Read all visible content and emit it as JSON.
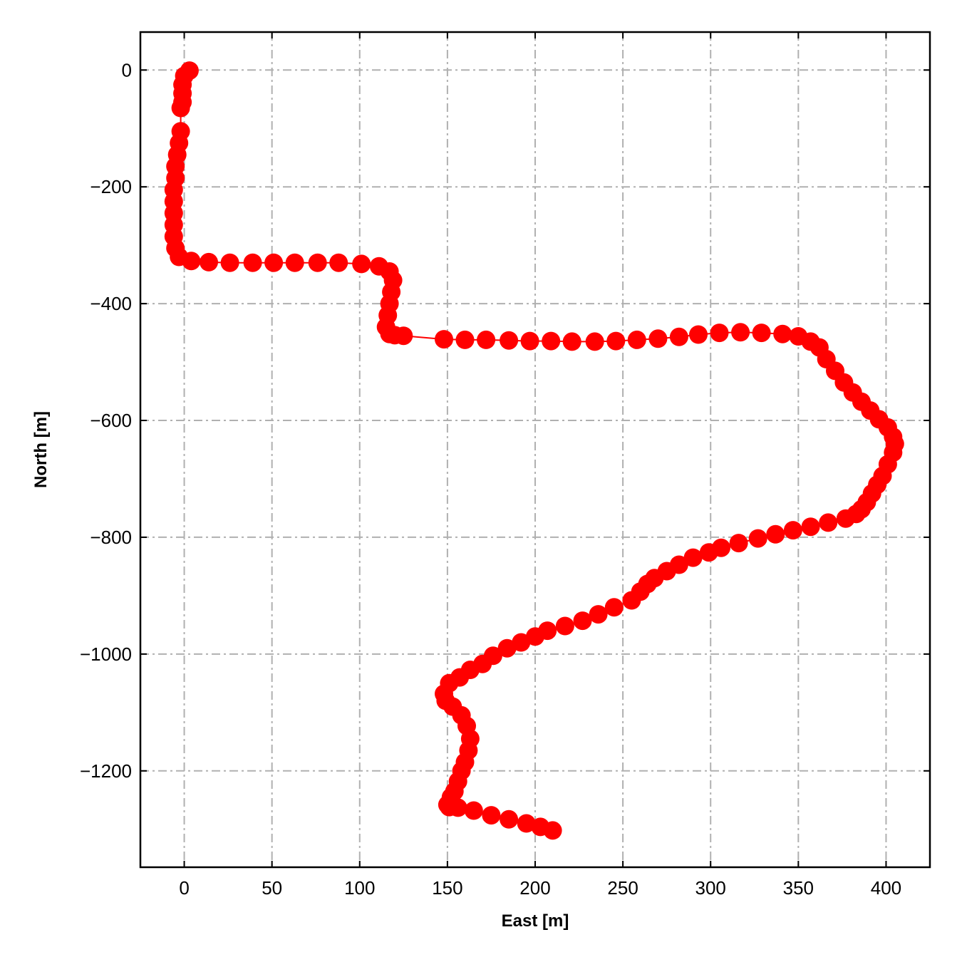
{
  "chart_data": {
    "type": "line",
    "title": "",
    "xlabel": "East [m]",
    "ylabel": "North [m]",
    "xlim": [
      -25,
      425
    ],
    "ylim": [
      -1365,
      65
    ],
    "xticks": [
      0,
      50,
      100,
      150,
      200,
      250,
      300,
      350,
      400
    ],
    "yticks": [
      0,
      -200,
      -400,
      -600,
      -800,
      -1000,
      -1200
    ],
    "xtick_labels": [
      "0",
      "50",
      "100",
      "150",
      "200",
      "250",
      "300",
      "350",
      "400"
    ],
    "ytick_labels": [
      "0",
      "−200",
      "−400",
      "−600",
      "−800",
      "−1000",
      "−1200"
    ],
    "grid": true,
    "series": [
      {
        "color": "#ff0000",
        "marker": "circle",
        "x": [
          3,
          0,
          -1,
          -1,
          -1,
          -2,
          -2,
          -3,
          -4,
          -5,
          -5,
          -6,
          -6,
          -6,
          -6,
          -6,
          -5,
          -3,
          4,
          14,
          26,
          39,
          51,
          63,
          76,
          88,
          101,
          111,
          117,
          119,
          118,
          117,
          116,
          115,
          117,
          120,
          125,
          148,
          160,
          172,
          185,
          197,
          209,
          221,
          234,
          246,
          258,
          270,
          282,
          293,
          305,
          317,
          329,
          341,
          350,
          357,
          362,
          366,
          371,
          376,
          381,
          386,
          391,
          396,
          401,
          404,
          405,
          404,
          401,
          398,
          395,
          392,
          389,
          386,
          383,
          377,
          367,
          357,
          347,
          337,
          327,
          316,
          306,
          299,
          290,
          282,
          275,
          268,
          264,
          260,
          255,
          245,
          236,
          227,
          217,
          207,
          200,
          192,
          184,
          176,
          170,
          163,
          157,
          151,
          148,
          149,
          153,
          158,
          161,
          163,
          162,
          160,
          158,
          156,
          154,
          152,
          150,
          151,
          156,
          165,
          175,
          185,
          195,
          203,
          210
        ],
        "y": [
          -1,
          -10,
          -25,
          -40,
          -55,
          -65,
          -105,
          -125,
          -145,
          -165,
          -185,
          -205,
          -225,
          -245,
          -265,
          -285,
          -305,
          -320,
          -327,
          -329,
          -330,
          -330,
          -330,
          -330,
          -330,
          -330,
          -332,
          -336,
          -345,
          -360,
          -380,
          -400,
          -420,
          -440,
          -452,
          -454,
          -455,
          -461,
          -462,
          -462,
          -463,
          -464,
          -464,
          -465,
          -465,
          -464,
          -462,
          -460,
          -457,
          -453,
          -450,
          -449,
          -450,
          -452,
          -456,
          -465,
          -475,
          -495,
          -515,
          -535,
          -552,
          -568,
          -583,
          -598,
          -612,
          -628,
          -640,
          -655,
          -675,
          -695,
          -710,
          -725,
          -740,
          -752,
          -760,
          -768,
          -775,
          -782,
          -788,
          -795,
          -802,
          -810,
          -818,
          -826,
          -835,
          -847,
          -858,
          -870,
          -880,
          -893,
          -908,
          -920,
          -932,
          -943,
          -952,
          -960,
          -970,
          -980,
          -990,
          -1003,
          -1017,
          -1027,
          -1040,
          -1050,
          -1068,
          -1080,
          -1090,
          -1105,
          -1123,
          -1145,
          -1165,
          -1185,
          -1200,
          -1218,
          -1235,
          -1245,
          -1258,
          -1262,
          -1263,
          -1268,
          -1276,
          -1283,
          -1290,
          -1296,
          -1302
        ]
      }
    ]
  }
}
